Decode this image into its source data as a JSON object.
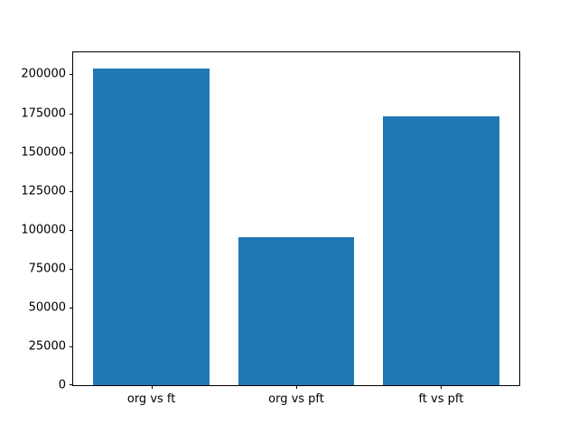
{
  "figure": {
    "background": "#ffffff",
    "spine_color": "#000000",
    "tick_label_color": "#000000"
  },
  "chart_data": {
    "type": "bar",
    "title": "",
    "xlabel": "",
    "ylabel": "",
    "categories": [
      "org vs ft",
      "org vs pft",
      "ft vs pft"
    ],
    "values": [
      204000,
      95000,
      173000
    ],
    "bar_color": "#1f77b4",
    "bar_width_fraction": 0.8,
    "yticks": [
      0,
      25000,
      50000,
      75000,
      100000,
      125000,
      150000,
      175000,
      200000
    ],
    "ytick_labels": [
      "0",
      "25000",
      "50000",
      "75000",
      "100000",
      "125000",
      "150000",
      "175000",
      "200000"
    ],
    "ylim": [
      0,
      214200
    ],
    "grid": false,
    "legend": null
  }
}
